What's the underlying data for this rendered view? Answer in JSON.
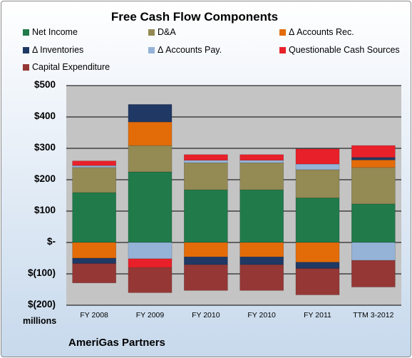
{
  "chart_data": {
    "type": "bar",
    "stacked": true,
    "title": "Free Cash Flow Components",
    "units_label": "millions",
    "company": "AmeriGas Partners",
    "categories": [
      "FY 2008",
      "FY 2009",
      "FY 2010",
      "FY 2010",
      "FY 2011",
      "TTM 3-2012"
    ],
    "ylim": [
      -200,
      500
    ],
    "yticks": [
      -200,
      -100,
      0,
      100,
      200,
      300,
      400,
      500
    ],
    "ytick_labels": [
      "$(200)",
      "$(100)",
      "$-",
      "$100",
      "$200",
      "$300",
      "$400",
      "$500"
    ],
    "grid": true,
    "legend_position": "top",
    "series": [
      {
        "name": "Net Income",
        "color": "#217a4a",
        "values": [
          159,
          225,
          168,
          168,
          142,
          123
        ]
      },
      {
        "name": "D&A",
        "color": "#948a54",
        "values": [
          80,
          84,
          86,
          86,
          90,
          116
        ]
      },
      {
        "name": "Δ Accounts Rec.",
        "color": "#e36c09",
        "values": [
          -50,
          75,
          -46,
          -46,
          -63,
          24
        ]
      },
      {
        "name": "Δ Inventories",
        "color": "#1f3864",
        "values": [
          -17,
          56,
          -25,
          -25,
          -20,
          8
        ]
      },
      {
        "name": "Δ Accounts Pay.",
        "color": "#95b3d7",
        "values": [
          6,
          -52,
          8,
          8,
          18,
          -57
        ]
      },
      {
        "name": "Questionable Cash Sources",
        "color": "#e8202a",
        "values": [
          15,
          -28,
          18,
          18,
          48,
          38
        ]
      },
      {
        "name": "Capital Expenditure",
        "color": "#953735",
        "values": [
          -62,
          -80,
          -82,
          -82,
          -84,
          -85
        ]
      }
    ]
  }
}
